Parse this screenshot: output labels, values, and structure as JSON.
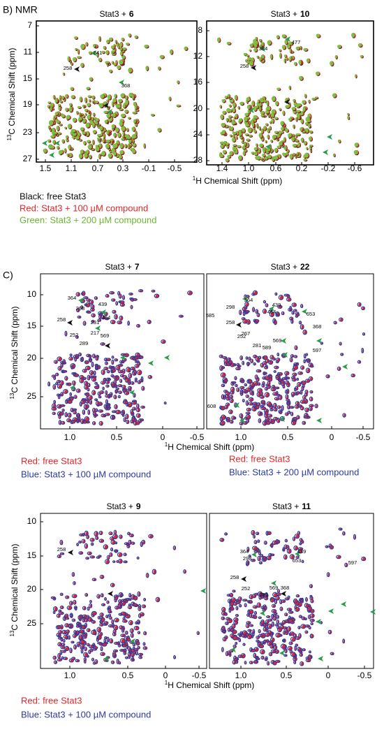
{
  "figure_b": {
    "label": "B) NMR",
    "y_label_sup": "13",
    "y_label": "C Chemical Shift (ppm)",
    "x_label_sup": "1",
    "x_label": "H Chemical Shift (ppm)",
    "legend": [
      "Black: free Stat3",
      "Red: Stat3 + 100 µM compound",
      "Green: Stat3 + 200 µM compound"
    ],
    "panels": [
      {
        "title": "Stat3 +",
        "compound": "6",
        "yticks": [
          "7",
          "11",
          "15",
          "19",
          "23",
          "27"
        ],
        "xticks": [
          "1.5",
          "1.1",
          "0.7",
          "0.3",
          "-0.1",
          "-0.5"
        ],
        "annotations": [
          "341",
          "258",
          "368"
        ]
      },
      {
        "title": "Stat3 +",
        "compound": "10",
        "yticks": [
          "8",
          "12",
          "16",
          "20",
          "24",
          "28"
        ],
        "xticks": [
          "1.4",
          "1.0",
          "0.6",
          "0.2",
          "-0.2",
          "-0.6"
        ],
        "annotations": [
          "364",
          "477",
          "258"
        ]
      }
    ]
  },
  "figure_c": {
    "label": "C)",
    "rows": [
      {
        "y_label_sup": "13",
        "y_label": "C Chemical Shift (ppm)",
        "x_label_sup": "1",
        "x_label": "H Chemical Shift (ppm)",
        "yticks": [
          "10",
          "15",
          "20",
          "25"
        ],
        "legends": [
          [
            "Red: free Stat3",
            "Blue: Stat3 + 100 µM compound"
          ],
          [
            "Red: free Stat3",
            "Blue: Stat3 + 200 µM compound"
          ]
        ],
        "panels": [
          {
            "title": "Stat3 +",
            "compound": "7",
            "xticks": [
              "1.0",
              "0.5",
              "0",
              "-0.5"
            ],
            "annotations": [
              "364",
              "298",
              "439",
              "464",
              "231",
              "258",
              "252",
              "217",
              "289",
              "569"
            ]
          },
          {
            "title": "Stat3 +",
            "compound": "22",
            "xticks": [
              "1.0",
              "0.5",
              "0",
              "-0.5"
            ],
            "annotations": [
              "364",
              "585",
              "298",
              "439",
              "464",
              "653",
              "258",
              "267",
              "252",
              "368",
              "281",
              "569",
              "589",
              "597",
              "608"
            ]
          }
        ]
      },
      {
        "y_label_sup": "13",
        "y_label": "C Chemical Shift (ppm)",
        "x_label_sup": "1",
        "x_label": "H Chemical Shift (ppm)",
        "yticks": [
          "10",
          "15",
          "20",
          "25"
        ],
        "legends": [
          [
            "Red: free Stat3",
            "Blue: Stat3 + 100 µM compound"
          ]
        ],
        "panels": [
          {
            "title": "Stat3 +",
            "compound": "9",
            "xticks": [
              "1.0",
              "0.5",
              "0",
              "-0.5"
            ],
            "annotations": [
              "258"
            ]
          },
          {
            "title": "Stat3 +",
            "compound": "11",
            "xticks": [
              "1.0",
              "0.5",
              "0",
              "-0.5"
            ],
            "annotations": [
              "364",
              "439",
              "298",
              "653",
              "597",
              "258",
              "252",
              "569",
              "368",
              "281"
            ]
          }
        ]
      }
    ]
  }
}
